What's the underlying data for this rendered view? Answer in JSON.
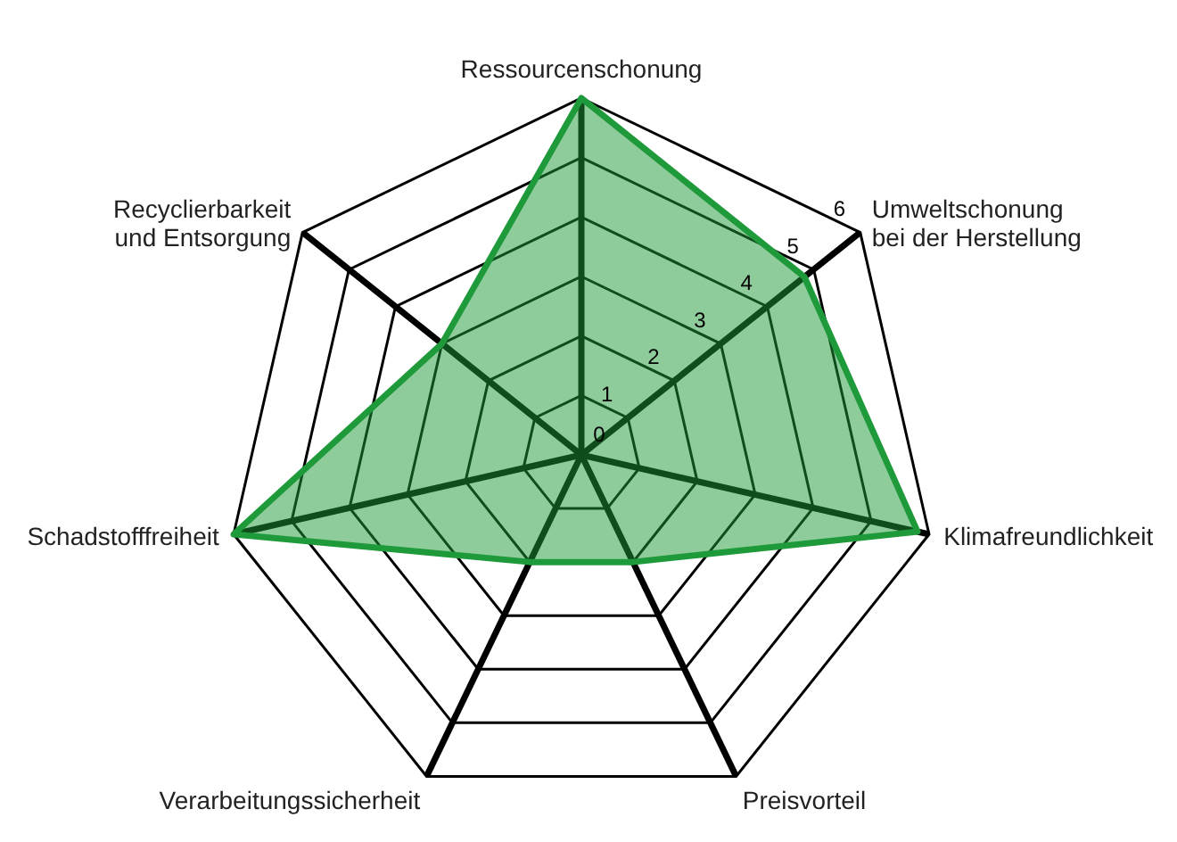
{
  "chart_data": {
    "type": "radar",
    "categories": [
      "Ressourcenschonung",
      "Umweltschonung\nbei der Herstellung",
      "Klimafreundlichkeit",
      "Preisvorteil",
      "Verarbeitungssicherheit",
      "Schadstofffreiheit",
      "Recyclierbarkeit\nund Entsorgung"
    ],
    "series": [
      {
        "color": "#1f9a3a",
        "values": [
          6,
          4.8,
          5.8,
          2,
          2,
          6,
          3
        ]
      }
    ],
    "ylim": [
      0,
      6
    ],
    "yticks": [
      0,
      1,
      2,
      3,
      4,
      5,
      6
    ],
    "grid": true,
    "marker": "none",
    "line_style": "solid"
  }
}
